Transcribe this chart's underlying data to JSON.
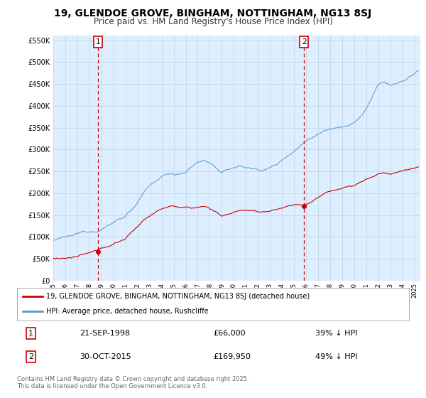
{
  "title": "19, GLENDOE GROVE, BINGHAM, NOTTINGHAM, NG13 8SJ",
  "subtitle": "Price paid vs. HM Land Registry's House Price Index (HPI)",
  "title_fontsize": 10,
  "subtitle_fontsize": 8.5,
  "bg_color": "#ffffff",
  "plot_bg_color": "#ddeeff",
  "grid_color": "#c0d0e0",
  "line1_color": "#cc0000",
  "line2_color": "#5599cc",
  "ylim": [
    0,
    560000
  ],
  "yticks": [
    0,
    50000,
    100000,
    150000,
    200000,
    250000,
    300000,
    350000,
    400000,
    450000,
    500000,
    550000
  ],
  "xlim_start": 1995.0,
  "xlim_end": 2025.5,
  "marker1_x": 1998.73,
  "marker1_y": 66000,
  "marker2_x": 2015.83,
  "marker2_y": 169950,
  "legend_entry1": "19, GLENDOE GROVE, BINGHAM, NOTTINGHAM, NG13 8SJ (detached house)",
  "legend_entry2": "HPI: Average price, detached house, Rushcliffe",
  "footer1": "Contains HM Land Registry data © Crown copyright and database right 2025.",
  "footer2": "This data is licensed under the Open Government Licence v3.0.",
  "table_rows": [
    {
      "num": "1",
      "date": "21-SEP-1998",
      "price": "£66,000",
      "hpi": "39% ↓ HPI"
    },
    {
      "num": "2",
      "date": "30-OCT-2015",
      "price": "£169,950",
      "hpi": "49% ↓ HPI"
    }
  ],
  "hpi_key_points": [
    [
      1995.0,
      88000
    ],
    [
      1995.5,
      90000
    ],
    [
      1996.0,
      91000
    ],
    [
      1996.5,
      93000
    ],
    [
      1997.0,
      96000
    ],
    [
      1997.5,
      100000
    ],
    [
      1998.0,
      104000
    ],
    [
      1998.5,
      108000
    ],
    [
      1999.0,
      115000
    ],
    [
      1999.5,
      122000
    ],
    [
      2000.0,
      130000
    ],
    [
      2000.5,
      138000
    ],
    [
      2001.0,
      148000
    ],
    [
      2001.5,
      162000
    ],
    [
      2002.0,
      178000
    ],
    [
      2002.5,
      198000
    ],
    [
      2003.0,
      210000
    ],
    [
      2003.5,
      222000
    ],
    [
      2004.0,
      232000
    ],
    [
      2004.5,
      238000
    ],
    [
      2005.0,
      240000
    ],
    [
      2005.5,
      242000
    ],
    [
      2006.0,
      248000
    ],
    [
      2006.5,
      258000
    ],
    [
      2007.0,
      268000
    ],
    [
      2007.5,
      272000
    ],
    [
      2008.0,
      268000
    ],
    [
      2008.5,
      258000
    ],
    [
      2009.0,
      242000
    ],
    [
      2009.5,
      248000
    ],
    [
      2010.0,
      255000
    ],
    [
      2010.5,
      258000
    ],
    [
      2011.0,
      255000
    ],
    [
      2011.5,
      252000
    ],
    [
      2012.0,
      250000
    ],
    [
      2012.5,
      252000
    ],
    [
      2013.0,
      256000
    ],
    [
      2013.5,
      262000
    ],
    [
      2014.0,
      272000
    ],
    [
      2014.5,
      285000
    ],
    [
      2015.0,
      298000
    ],
    [
      2015.5,
      310000
    ],
    [
      2016.0,
      322000
    ],
    [
      2016.5,
      332000
    ],
    [
      2017.0,
      340000
    ],
    [
      2017.5,
      348000
    ],
    [
      2018.0,
      355000
    ],
    [
      2018.5,
      360000
    ],
    [
      2019.0,
      365000
    ],
    [
      2019.5,
      368000
    ],
    [
      2020.0,
      372000
    ],
    [
      2020.5,
      385000
    ],
    [
      2021.0,
      405000
    ],
    [
      2021.5,
      430000
    ],
    [
      2022.0,
      455000
    ],
    [
      2022.5,
      462000
    ],
    [
      2023.0,
      455000
    ],
    [
      2023.5,
      458000
    ],
    [
      2024.0,
      462000
    ],
    [
      2024.5,
      470000
    ],
    [
      2025.0,
      478000
    ],
    [
      2025.3,
      485000
    ]
  ],
  "prop_key_points": [
    [
      1995.0,
      52000
    ],
    [
      1995.5,
      53500
    ],
    [
      1996.0,
      54000
    ],
    [
      1996.5,
      55000
    ],
    [
      1997.0,
      57000
    ],
    [
      1997.5,
      60000
    ],
    [
      1998.0,
      62000
    ],
    [
      1998.5,
      65000
    ],
    [
      1998.73,
      66000
    ],
    [
      1999.0,
      70000
    ],
    [
      1999.5,
      76000
    ],
    [
      2000.0,
      82000
    ],
    [
      2000.5,
      88000
    ],
    [
      2001.0,
      95000
    ],
    [
      2001.5,
      108000
    ],
    [
      2002.0,
      122000
    ],
    [
      2002.5,
      138000
    ],
    [
      2003.0,
      148000
    ],
    [
      2003.5,
      158000
    ],
    [
      2004.0,
      165000
    ],
    [
      2004.5,
      170000
    ],
    [
      2005.0,
      172000
    ],
    [
      2005.5,
      170000
    ],
    [
      2006.0,
      168000
    ],
    [
      2006.5,
      165000
    ],
    [
      2007.0,
      168000
    ],
    [
      2007.5,
      170000
    ],
    [
      2008.0,
      166000
    ],
    [
      2008.5,
      158000
    ],
    [
      2009.0,
      148000
    ],
    [
      2009.5,
      152000
    ],
    [
      2010.0,
      158000
    ],
    [
      2010.5,
      162000
    ],
    [
      2011.0,
      162000
    ],
    [
      2011.5,
      158000
    ],
    [
      2012.0,
      155000
    ],
    [
      2012.5,
      156000
    ],
    [
      2013.0,
      158000
    ],
    [
      2013.5,
      162000
    ],
    [
      2014.0,
      165000
    ],
    [
      2014.5,
      170000
    ],
    [
      2015.0,
      172000
    ],
    [
      2015.5,
      174000
    ],
    [
      2015.83,
      169950
    ],
    [
      2016.0,
      175000
    ],
    [
      2016.5,
      182000
    ],
    [
      2017.0,
      190000
    ],
    [
      2017.5,
      198000
    ],
    [
      2018.0,
      203000
    ],
    [
      2018.5,
      208000
    ],
    [
      2019.0,
      212000
    ],
    [
      2019.5,
      215000
    ],
    [
      2020.0,
      218000
    ],
    [
      2020.5,
      225000
    ],
    [
      2021.0,
      232000
    ],
    [
      2021.5,
      238000
    ],
    [
      2022.0,
      245000
    ],
    [
      2022.5,
      248000
    ],
    [
      2023.0,
      245000
    ],
    [
      2023.5,
      248000
    ],
    [
      2024.0,
      252000
    ],
    [
      2024.5,
      255000
    ],
    [
      2025.0,
      258000
    ],
    [
      2025.3,
      260000
    ]
  ]
}
